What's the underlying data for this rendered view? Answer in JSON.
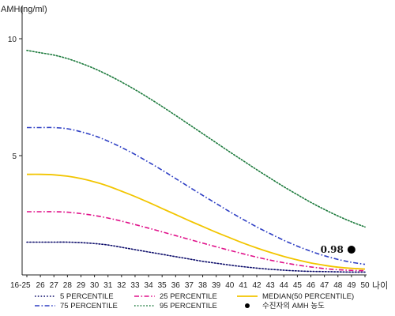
{
  "chart_data": {
    "type": "line",
    "title": "",
    "ylabel": "AMH(ng/ml)",
    "xlabel": "나이",
    "ylim": [
      0,
      11
    ],
    "yticks": [
      5,
      10
    ],
    "categories": [
      "16-25",
      "26",
      "27",
      "28",
      "29",
      "30",
      "31",
      "32",
      "33",
      "34",
      "35",
      "36",
      "37",
      "38",
      "39",
      "40",
      "41",
      "42",
      "43",
      "44",
      "45",
      "46",
      "47",
      "48",
      "49",
      "50"
    ],
    "grid": false,
    "legend_position": "bottom",
    "series": [
      {
        "name": "5 PERCENTILE",
        "color": "#0d0d6b",
        "style": "dotted",
        "values": [
          1.3,
          1.3,
          1.3,
          1.3,
          1.28,
          1.24,
          1.18,
          1.08,
          0.98,
          0.88,
          0.78,
          0.68,
          0.58,
          0.48,
          0.4,
          0.32,
          0.25,
          0.19,
          0.14,
          0.1,
          0.07,
          0.05,
          0.04,
          0.03,
          0.02,
          0.02
        ]
      },
      {
        "name": "25 PERCENTILE",
        "color": "#e0118a",
        "style": "dashdot",
        "values": [
          2.6,
          2.6,
          2.6,
          2.58,
          2.52,
          2.44,
          2.33,
          2.2,
          2.05,
          1.9,
          1.74,
          1.58,
          1.42,
          1.26,
          1.1,
          0.95,
          0.8,
          0.66,
          0.53,
          0.42,
          0.32,
          0.24,
          0.17,
          0.12,
          0.09,
          0.08
        ]
      },
      {
        "name": "MEDIAN(50 PERCENTILE)",
        "color": "#f2c500",
        "style": "solid",
        "values": [
          4.2,
          4.2,
          4.18,
          4.12,
          4.02,
          3.88,
          3.7,
          3.48,
          3.25,
          3.0,
          2.74,
          2.48,
          2.22,
          1.97,
          1.72,
          1.49,
          1.26,
          1.05,
          0.86,
          0.69,
          0.54,
          0.41,
          0.31,
          0.23,
          0.18,
          0.15
        ]
      },
      {
        "name": "75 PERCENTILE",
        "color": "#2e3fc4",
        "style": "dashdot",
        "values": [
          6.2,
          6.2,
          6.2,
          6.15,
          6.02,
          5.85,
          5.62,
          5.35,
          5.05,
          4.72,
          4.38,
          4.02,
          3.66,
          3.3,
          2.95,
          2.6,
          2.27,
          1.95,
          1.66,
          1.38,
          1.13,
          0.91,
          0.72,
          0.56,
          0.44,
          0.35
        ]
      },
      {
        "name": "95 PERCENTILE",
        "color": "#1c7a3c",
        "style": "dotted",
        "values": [
          9.5,
          9.4,
          9.3,
          9.15,
          8.95,
          8.72,
          8.45,
          8.15,
          7.82,
          7.47,
          7.1,
          6.72,
          6.33,
          5.94,
          5.55,
          5.16,
          4.78,
          4.4,
          4.03,
          3.67,
          3.33,
          3.0,
          2.7,
          2.42,
          2.17,
          1.95
        ]
      }
    ],
    "annotations": [
      {
        "name": "수진자의 AMH 농도",
        "x": "49",
        "y": 0.98,
        "label": "0.98",
        "color": "#000000"
      }
    ]
  }
}
